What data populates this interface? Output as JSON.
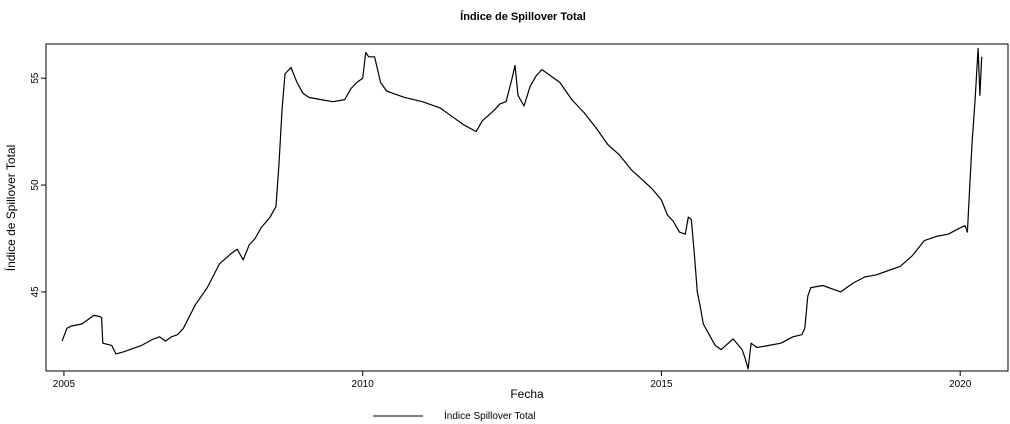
{
  "chart_data": {
    "type": "line",
    "title": "Índice de Spillover Total",
    "xlabel": "Fecha",
    "ylabel": "Índice de Spillover Total",
    "xlim": [
      2004.7,
      2020.8
    ],
    "ylim": [
      41.3,
      56.6
    ],
    "xticks": [
      2005,
      2010,
      2015,
      2020
    ],
    "xtick_labels": [
      "2005",
      "2010",
      "2015",
      "2020"
    ],
    "yticks": [
      45,
      50,
      55
    ],
    "ytick_labels": [
      "45",
      "50",
      "55"
    ],
    "grid": false,
    "legend_position": "bottom-center",
    "series": [
      {
        "name": "Índice Spillover Total",
        "color": "#000000",
        "x": [
          2004.97,
          2005.05,
          2005.12,
          2005.3,
          2005.5,
          2005.6,
          2005.63,
          2005.65,
          2005.8,
          2005.87,
          2006.0,
          2006.3,
          2006.5,
          2006.6,
          2006.7,
          2006.8,
          2006.9,
          2007.0,
          2007.2,
          2007.4,
          2007.6,
          2007.8,
          2007.9,
          2008.0,
          2008.1,
          2008.2,
          2008.3,
          2008.45,
          2008.55,
          2008.6,
          2008.65,
          2008.7,
          2008.8,
          2008.9,
          2009.0,
          2009.1,
          2009.3,
          2009.5,
          2009.7,
          2009.8,
          2009.9,
          2010.0,
          2010.05,
          2010.1,
          2010.2,
          2010.3,
          2010.4,
          2010.5,
          2010.7,
          2011.0,
          2011.3,
          2011.5,
          2011.7,
          2011.9,
          2012.0,
          2012.2,
          2012.3,
          2012.4,
          2012.5,
          2012.55,
          2012.6,
          2012.7,
          2012.8,
          2012.9,
          2013.0,
          2013.1,
          2013.3,
          2013.5,
          2013.7,
          2013.9,
          2014.1,
          2014.3,
          2014.5,
          2014.7,
          2014.85,
          2015.0,
          2015.1,
          2015.2,
          2015.3,
          2015.4,
          2015.45,
          2015.5,
          2015.55,
          2015.6,
          2015.65,
          2015.7,
          2015.8,
          2015.9,
          2016.0,
          2016.2,
          2016.35,
          2016.4,
          2016.45,
          2016.5,
          2016.6,
          2016.8,
          2017.0,
          2017.2,
          2017.35,
          2017.4,
          2017.45,
          2017.5,
          2017.7,
          2017.9,
          2018.0,
          2018.2,
          2018.4,
          2018.6,
          2018.8,
          2019.0,
          2019.2,
          2019.4,
          2019.6,
          2019.8,
          2020.0,
          2020.08,
          2020.12,
          2020.16,
          2020.2,
          2020.25,
          2020.3,
          2020.33,
          2020.36
        ],
        "y": [
          42.7,
          43.3,
          43.4,
          43.5,
          43.9,
          43.85,
          43.8,
          42.6,
          42.5,
          42.1,
          42.2,
          42.5,
          42.8,
          42.9,
          42.7,
          42.9,
          43.0,
          43.3,
          44.4,
          45.2,
          46.3,
          46.8,
          47.0,
          46.5,
          47.2,
          47.5,
          48.0,
          48.5,
          49.0,
          51.0,
          53.5,
          55.2,
          55.5,
          54.8,
          54.3,
          54.1,
          54.0,
          53.9,
          54.0,
          54.5,
          54.8,
          55.0,
          56.2,
          56.0,
          56.0,
          54.8,
          54.4,
          54.3,
          54.1,
          53.9,
          53.6,
          53.2,
          52.8,
          52.5,
          53.0,
          53.5,
          53.8,
          53.9,
          55.0,
          55.6,
          54.2,
          53.7,
          54.6,
          55.1,
          55.4,
          55.2,
          54.8,
          54.0,
          53.4,
          52.7,
          51.9,
          51.4,
          50.7,
          50.2,
          49.8,
          49.3,
          48.6,
          48.3,
          47.8,
          47.7,
          48.5,
          48.4,
          46.8,
          45.0,
          44.3,
          43.5,
          43.0,
          42.5,
          42.3,
          42.8,
          42.3,
          41.9,
          41.4,
          42.6,
          42.4,
          42.5,
          42.6,
          42.9,
          43.0,
          43.3,
          44.8,
          45.2,
          45.3,
          45.1,
          45.0,
          45.4,
          45.7,
          45.8,
          46.0,
          46.2,
          46.7,
          47.4,
          47.6,
          47.7,
          48.0,
          48.1,
          47.8,
          50.0,
          52.0,
          54.0,
          56.4,
          54.2,
          56.0
        ]
      }
    ]
  }
}
